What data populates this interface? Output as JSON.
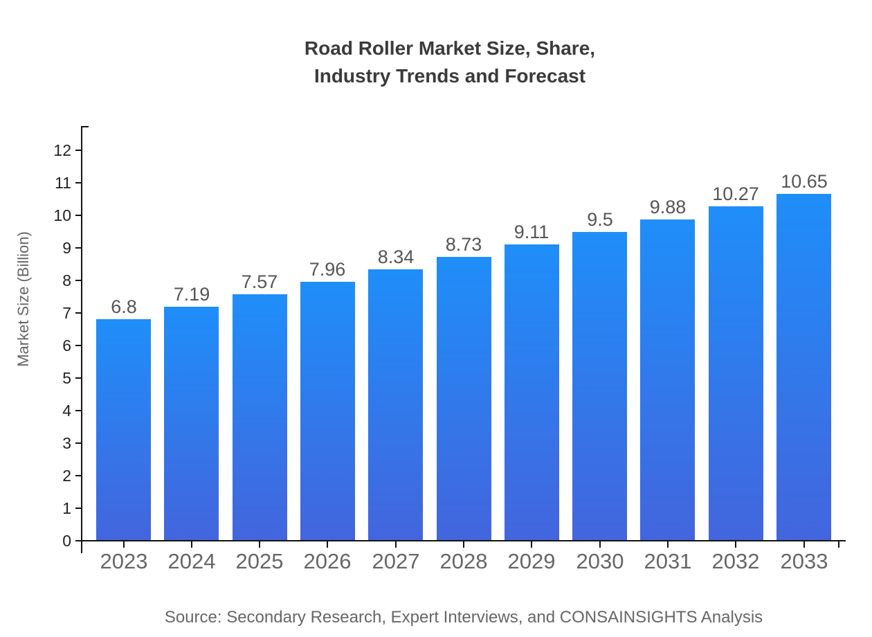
{
  "title": {
    "line1": "Road Roller Market Size, Share,",
    "line2": "Industry Trends and Forecast"
  },
  "chart_data": {
    "type": "bar",
    "title": "Road Roller Market Size, Share, Industry Trends and Forecast",
    "categories": [
      "2023",
      "2024",
      "2025",
      "2026",
      "2027",
      "2028",
      "2029",
      "2030",
      "2031",
      "2032",
      "2033"
    ],
    "values": [
      6.8,
      7.19,
      7.57,
      7.96,
      8.34,
      8.73,
      9.11,
      9.5,
      9.88,
      10.27,
      10.65
    ],
    "value_labels": [
      "6.8",
      "7.19",
      "7.57",
      "7.96",
      "8.34",
      "8.73",
      "9.11",
      "9.5",
      "9.88",
      "10.27",
      "10.65"
    ],
    "xlabel": "",
    "ylabel": "Market Size (Billion)",
    "ylim": [
      0,
      12.75
    ],
    "yticks": [
      0,
      1,
      2,
      3,
      4,
      5,
      6,
      7,
      8,
      9,
      10,
      11,
      12
    ],
    "grid": false,
    "legend": false,
    "source": "Source: Secondary Research, Expert Interviews, and CONSAINSIGHTS Analysis",
    "colors": {
      "bar_gradient_top": "#1F8EF9",
      "bar_gradient_bottom": "#4365DD",
      "axis": "#111111",
      "title_text": "#3B3B3B",
      "y_tick_text": "#222222",
      "muted_text": "#666666",
      "data_label_text": "#555555",
      "background": "#FFFFFF"
    }
  }
}
